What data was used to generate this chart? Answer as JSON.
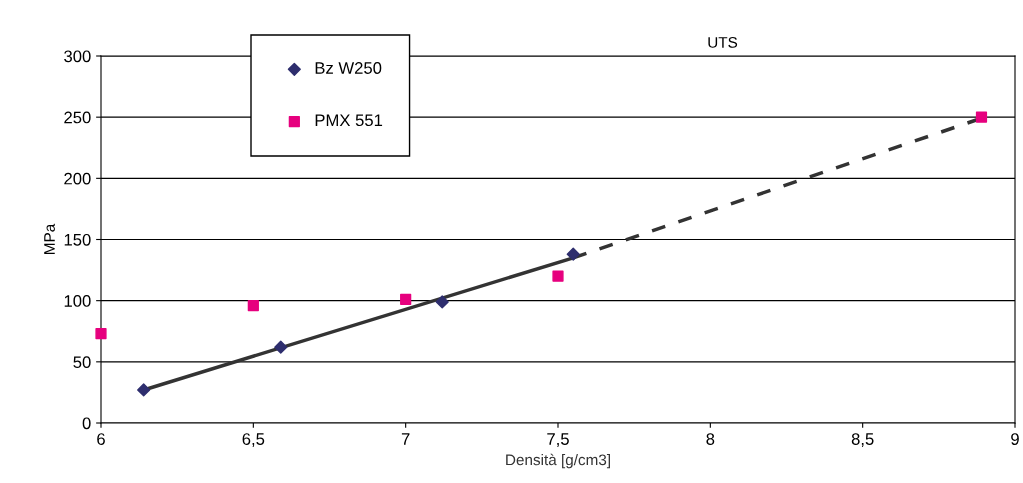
{
  "chart_data": {
    "type": "scatter",
    "title": "UTS",
    "xlabel": "Densità [g/cm3]",
    "ylabel": "MPa",
    "xlim": [
      6,
      9
    ],
    "xticks": [
      {
        "value": 6,
        "label": "6"
      },
      {
        "value": 6.5,
        "label": "6,5"
      },
      {
        "value": 7,
        "label": "7"
      },
      {
        "value": 7.5,
        "label": "7,5"
      },
      {
        "value": 8,
        "label": "8"
      },
      {
        "value": 8.5,
        "label": "8,5"
      },
      {
        "value": 9,
        "label": "9"
      }
    ],
    "ylim": [
      0,
      300
    ],
    "yticks": [
      0,
      50,
      100,
      150,
      200,
      250,
      300
    ],
    "grid": "y",
    "legend": "top left",
    "series": [
      {
        "name": "Bz W250",
        "color": "#2e2e6e",
        "marker": "diamond",
        "x": [
          6.14,
          6.59,
          7.12,
          7.55
        ],
        "values": [
          27,
          62,
          99,
          138
        ]
      },
      {
        "name": "PMX 551",
        "color": "#e6007e",
        "marker": "square",
        "x": [
          6.0,
          6.5,
          7.0,
          7.5,
          8.89
        ],
        "values": [
          73,
          96,
          101,
          120,
          250
        ]
      },
      {
        "type": "line",
        "color": "#333333",
        "marker": "none",
        "line_style": "solid",
        "x": [
          6.14,
          7.55
        ],
        "values": [
          27,
          135
        ]
      },
      {
        "type": "line",
        "color": "#333333",
        "marker": "none",
        "line_style": "dashed",
        "x": [
          7.55,
          8.9
        ],
        "values": [
          135,
          250
        ]
      }
    ]
  }
}
